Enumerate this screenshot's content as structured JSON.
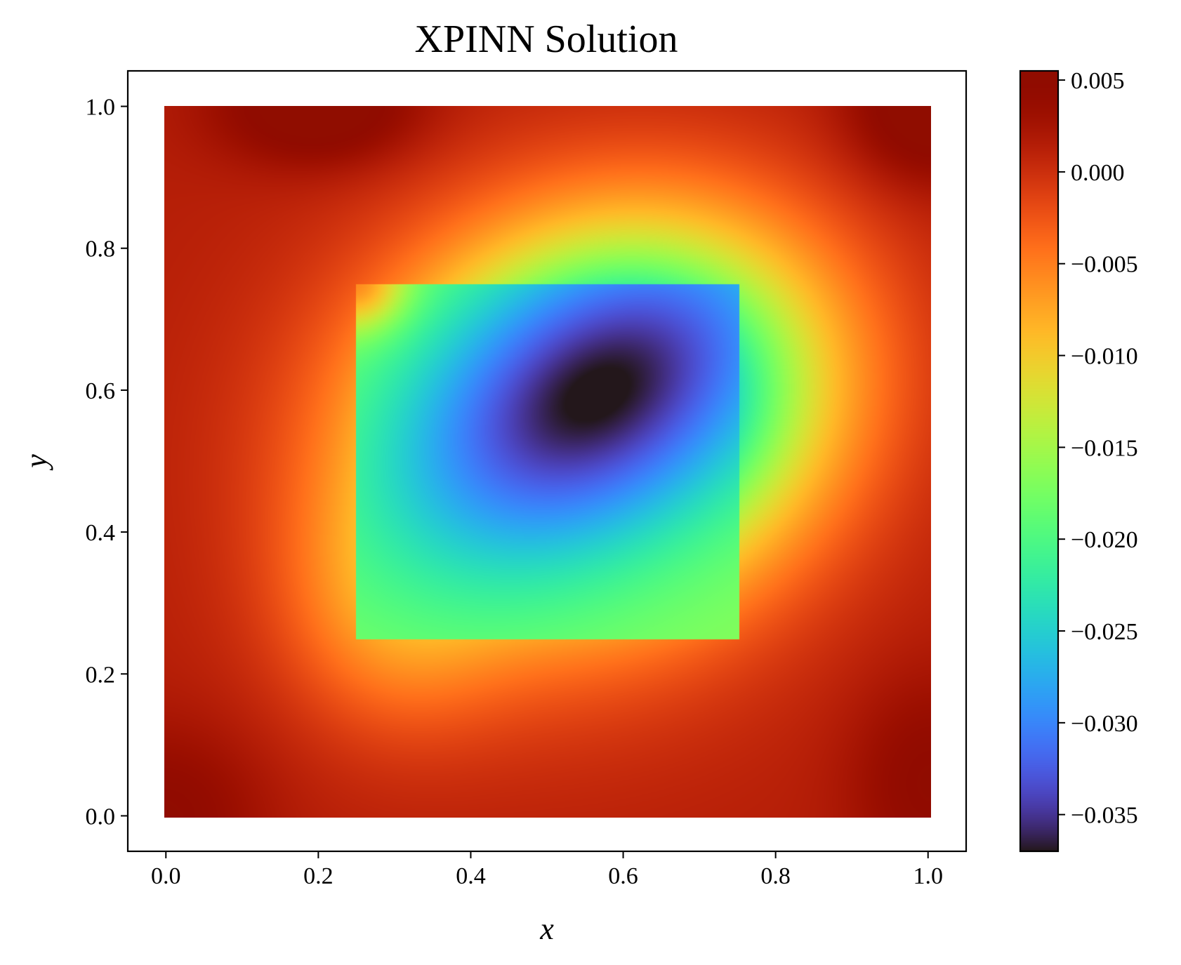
{
  "chart_data": {
    "type": "heatmap",
    "title": "XPINN Solution",
    "xlabel": "x",
    "ylabel": "y",
    "xlim": [
      -0.05,
      1.05
    ],
    "ylim": [
      -0.05,
      1.05
    ],
    "x_ticks": [
      "0.0",
      "0.2",
      "0.4",
      "0.6",
      "0.8",
      "1.0"
    ],
    "y_ticks": [
      "0.0",
      "0.2",
      "0.4",
      "0.6",
      "0.8",
      "1.0"
    ],
    "colorbar": {
      "colormap": "turbo",
      "range": [
        -0.037,
        0.0055
      ],
      "ticks": [
        "0.005",
        "0.000",
        "−0.005",
        "−0.010",
        "−0.015",
        "−0.020",
        "−0.025",
        "−0.030",
        "−0.035"
      ],
      "tick_values": [
        0.005,
        0.0,
        -0.005,
        -0.01,
        -0.015,
        -0.02,
        -0.025,
        -0.03,
        -0.035
      ]
    },
    "domain": {
      "x": [
        0.0,
        1.0
      ],
      "y": [
        0.0,
        1.0
      ]
    },
    "subdomain": {
      "x": [
        0.25,
        0.75
      ],
      "y": [
        0.25,
        0.75
      ]
    },
    "field_features": {
      "minimum": {
        "x": 0.565,
        "y": 0.595,
        "value": -0.0365
      },
      "maximum_regions": [
        {
          "x": 0.2,
          "y": 1.0,
          "value": 0.0045
        },
        {
          "x": 1.0,
          "y": 1.0,
          "value": 0.0045
        },
        {
          "x": 0.0,
          "y": 0.0,
          "value": 0.003
        }
      ]
    },
    "grid": false
  }
}
